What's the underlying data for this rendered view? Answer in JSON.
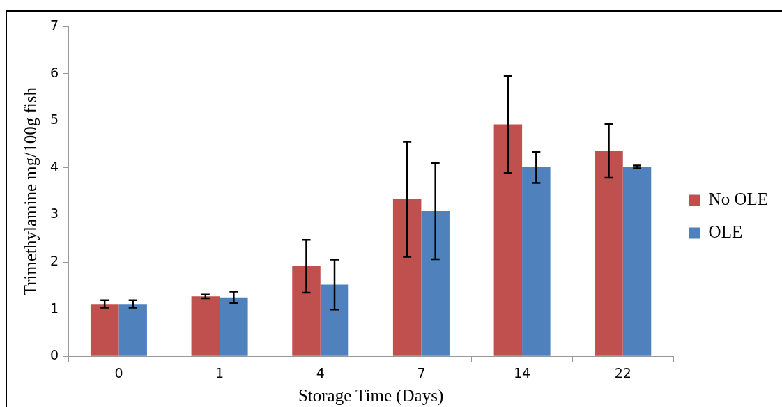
{
  "chart_data": {
    "type": "bar",
    "xlabel": "Storage Time (Days)",
    "ylabel": "Trimethylamine mg/100g fish",
    "categories": [
      "0",
      "1",
      "4",
      "7",
      "14",
      "22"
    ],
    "series": [
      {
        "name": "No OLE",
        "color": "#c0504d",
        "values": [
          1.11,
          1.27,
          1.91,
          3.33,
          4.92,
          4.36
        ],
        "errors": [
          0.08,
          0.04,
          0.56,
          1.22,
          1.03,
          0.57
        ]
      },
      {
        "name": "OLE",
        "color": "#4f81bd",
        "values": [
          1.11,
          1.25,
          1.52,
          3.08,
          4.01,
          4.02
        ],
        "errors": [
          0.08,
          0.12,
          0.53,
          1.02,
          0.33,
          0.03
        ]
      }
    ],
    "ylim": [
      0,
      7
    ],
    "yticks": [
      0,
      1,
      2,
      3,
      4,
      5,
      6,
      7
    ],
    "legend": "right"
  }
}
